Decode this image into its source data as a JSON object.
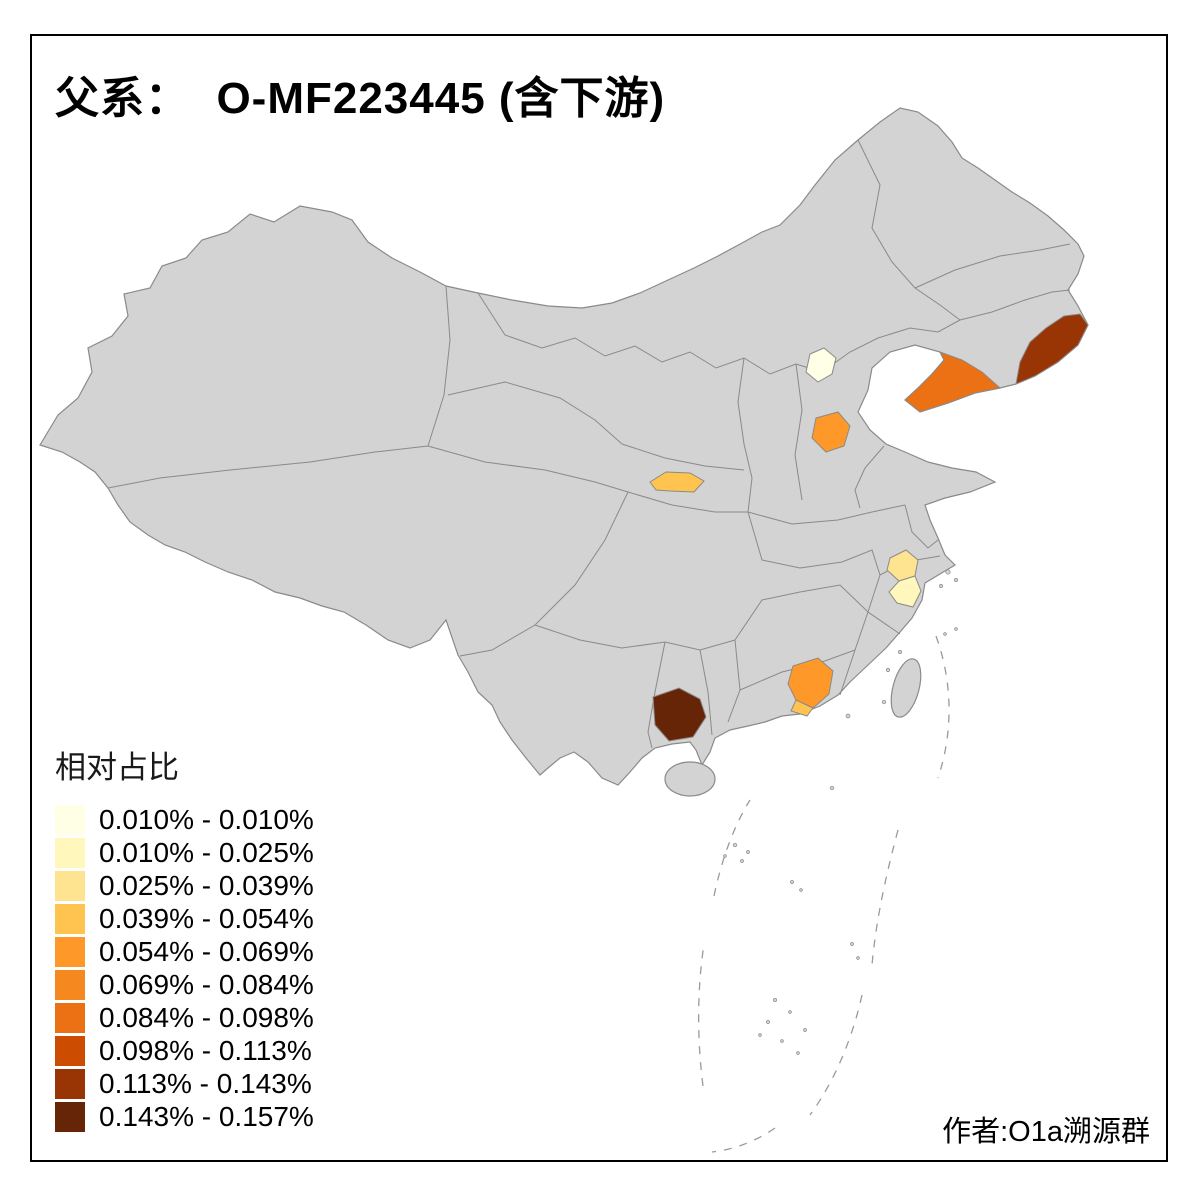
{
  "title": "父系：  O-MF223445 (含下游)",
  "attribution": "作者:O1a溯源群",
  "legend": {
    "title": "相对占比",
    "items": [
      {
        "range": "0.010% - 0.010%",
        "color": "#FFFFE5"
      },
      {
        "range": "0.010% - 0.025%",
        "color": "#FFF7BC"
      },
      {
        "range": "0.025% - 0.039%",
        "color": "#FEE391"
      },
      {
        "range": "0.039% - 0.054%",
        "color": "#FEC44F"
      },
      {
        "range": "0.054% - 0.069%",
        "color": "#FE9929"
      },
      {
        "range": "0.069% - 0.084%",
        "color": "#F5881F"
      },
      {
        "range": "0.084% - 0.098%",
        "color": "#EC7014"
      },
      {
        "range": "0.098% - 0.113%",
        "color": "#CC4C02"
      },
      {
        "range": "0.113% - 0.143%",
        "color": "#993404"
      },
      {
        "range": "0.143% - 0.157%",
        "color": "#662506"
      }
    ]
  },
  "map": {
    "land_color": "#D3D3D3",
    "border_color": "#8A8A8A",
    "sea_color": "#FFFFFF",
    "frame_color": "#000000",
    "highlighted_regions": [
      {
        "id": "beijing-area",
        "legend_class": 1,
        "color": "#FFFFE5"
      },
      {
        "id": "east-liaoning-coast",
        "legend_class": 9,
        "color": "#993404"
      },
      {
        "id": "liaodong-peninsula",
        "legend_class": 7,
        "color": "#EC7014"
      },
      {
        "id": "south-hebei-area",
        "legend_class": 5,
        "color": "#FE9929"
      },
      {
        "id": "central-shaanxi-area",
        "legend_class": 4,
        "color": "#FEC44F"
      },
      {
        "id": "east-zhejiang-north",
        "legend_class": 3,
        "color": "#FEE391"
      },
      {
        "id": "east-zhejiang-south",
        "legend_class": 2,
        "color": "#FFF7BC"
      },
      {
        "id": "pearl-river-delta",
        "legend_class": 5,
        "color": "#FE9929"
      },
      {
        "id": "pearl-river-delta-south",
        "legend_class": 4,
        "color": "#FEC44F"
      },
      {
        "id": "east-yunnan-area",
        "legend_class": 10,
        "color": "#662506"
      }
    ]
  }
}
